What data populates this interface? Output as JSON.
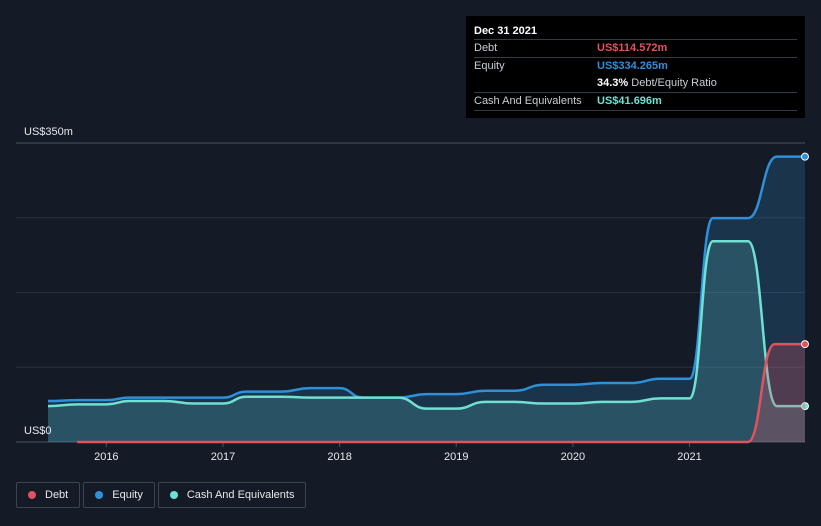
{
  "tooltip": {
    "date": "Dec 31 2021",
    "debt_label": "Debt",
    "debt_value": "US$114.572m",
    "equity_label": "Equity",
    "equity_value": "US$334.265m",
    "ratio_value": "34.3%",
    "ratio_label": "Debt/Equity Ratio",
    "cash_label": "Cash And Equivalents",
    "cash_value": "US$41.696m"
  },
  "legend": {
    "debt": "Debt",
    "equity": "Equity",
    "cash": "Cash And Equivalents"
  },
  "colors": {
    "debt": "#e05260",
    "equity": "#2f8fd8",
    "cash": "#6fe0d2",
    "background": "#151b26"
  },
  "chart_data": {
    "type": "area",
    "y_top_label": "US$350m",
    "y_bottom_label": "US$0",
    "ylim": [
      0,
      350
    ],
    "y_unit": "US$m",
    "xlim": [
      2015.5,
      2021.99
    ],
    "x_ticks": [
      2016,
      2017,
      2018,
      2019,
      2020,
      2021
    ],
    "grid": true,
    "legend_position": "bottom-left",
    "series": [
      {
        "name": "Debt",
        "x": [
          2015.75,
          2021.5,
          2021.73,
          2021.99
        ],
        "y": [
          0,
          0,
          114.6,
          114.6
        ]
      },
      {
        "name": "Equity",
        "x": [
          2015.5,
          2015.75,
          2016.0,
          2016.2,
          2016.5,
          2016.75,
          2017.0,
          2017.2,
          2017.5,
          2017.75,
          2018.0,
          2018.2,
          2018.5,
          2018.75,
          2019.0,
          2019.25,
          2019.5,
          2019.75,
          2020.0,
          2020.25,
          2020.5,
          2020.75,
          2021.0,
          2021.2,
          2021.5,
          2021.75,
          2021.99
        ],
        "y": [
          48,
          49,
          49,
          52,
          52,
          52,
          52,
          59,
          59,
          63,
          63,
          52,
          52,
          56,
          56,
          60,
          60,
          67,
          67,
          69,
          69,
          74,
          74,
          262,
          262,
          334,
          334
        ]
      },
      {
        "name": "Cash And Equivalents",
        "x": [
          2015.5,
          2015.75,
          2016.0,
          2016.2,
          2016.5,
          2016.75,
          2017.0,
          2017.2,
          2017.5,
          2017.75,
          2018.0,
          2018.2,
          2018.5,
          2018.75,
          2019.0,
          2019.25,
          2019.5,
          2019.75,
          2020.0,
          2020.25,
          2020.5,
          2020.75,
          2021.0,
          2021.2,
          2021.5,
          2021.75,
          2021.99
        ],
        "y": [
          42,
          44,
          44,
          48,
          48,
          45,
          45,
          53,
          53,
          52,
          52,
          52,
          52,
          39,
          39,
          47,
          47,
          45,
          45,
          47,
          47,
          51,
          51,
          235,
          235,
          42,
          42
        ]
      }
    ]
  }
}
